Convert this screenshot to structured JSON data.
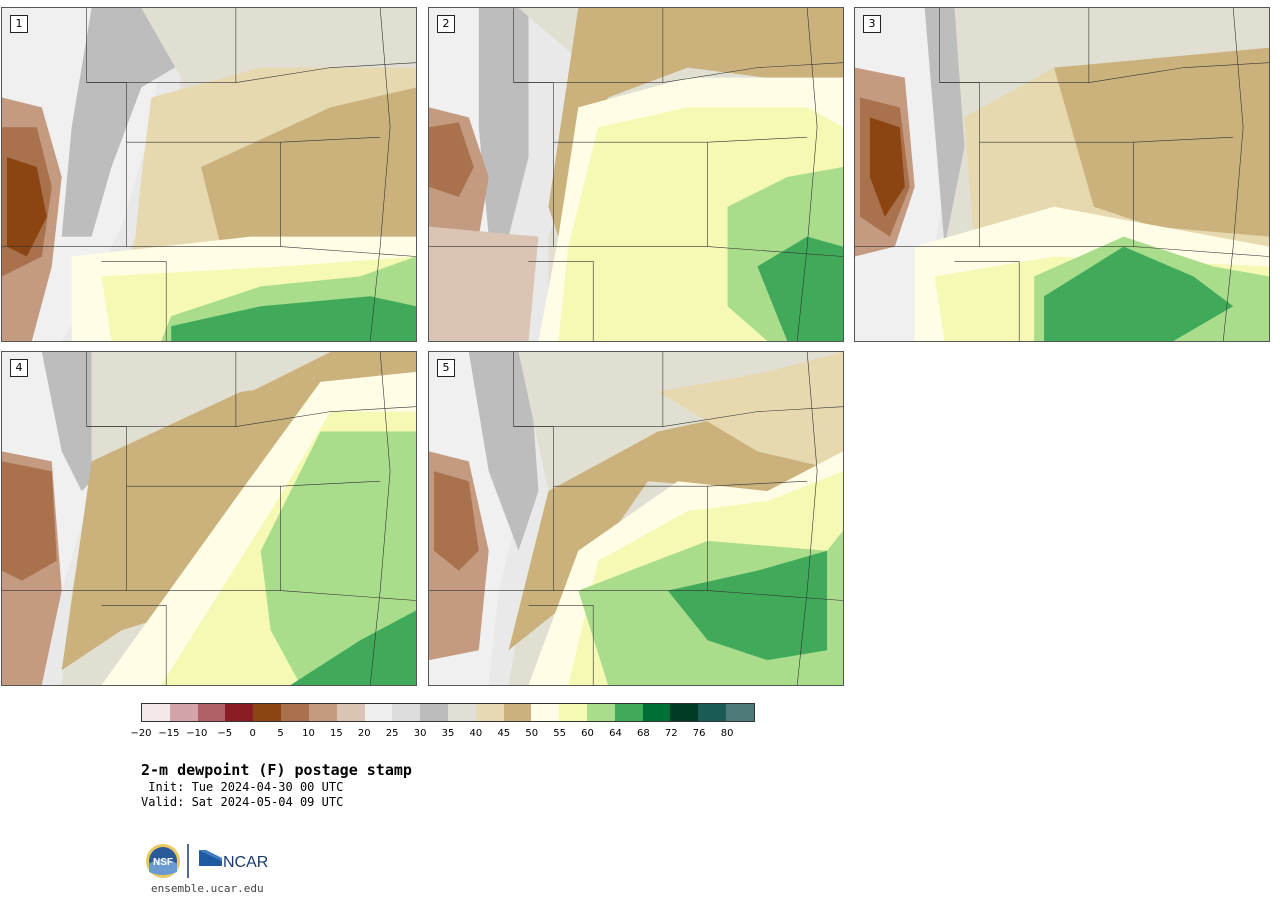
{
  "panels": [
    {
      "label": "1"
    },
    {
      "label": "2"
    },
    {
      "label": "3"
    },
    {
      "label": "4"
    },
    {
      "label": "5"
    }
  ],
  "colorbar": {
    "colors": [
      "#f4e9ea",
      "#d4a3a9",
      "#b06068",
      "#8a1d24",
      "#8b4513",
      "#a9714c",
      "#c49a80",
      "#dcc4b4",
      "#efefef",
      "#dcdcdc",
      "#bcbcbc",
      "#e0e0d6",
      "#e6dab4",
      "#c9b27d",
      "#fffde8",
      "#f5f9b4",
      "#a9dd8c",
      "#41aa5a",
      "#006e37",
      "#003c23",
      "#1c5a55",
      "#4f7a7a"
    ],
    "ticks": [
      "−20",
      "−15",
      "−10",
      "−5",
      "0",
      "5",
      "10",
      "15",
      "20",
      "25",
      "30",
      "35",
      "40",
      "45",
      "50",
      "55",
      "60",
      "64",
      "68",
      "72",
      "76",
      "80"
    ]
  },
  "title": "2-m dewpoint (F) postage stamp",
  "init": " Init: Tue 2024-04-30 00 UTC",
  "valid": "Valid: Sat 2024-05-04 09 UTC",
  "logos": {
    "nsf": "NSF",
    "ncar": "NCAR"
  },
  "website": "ensemble.ucar.edu"
}
